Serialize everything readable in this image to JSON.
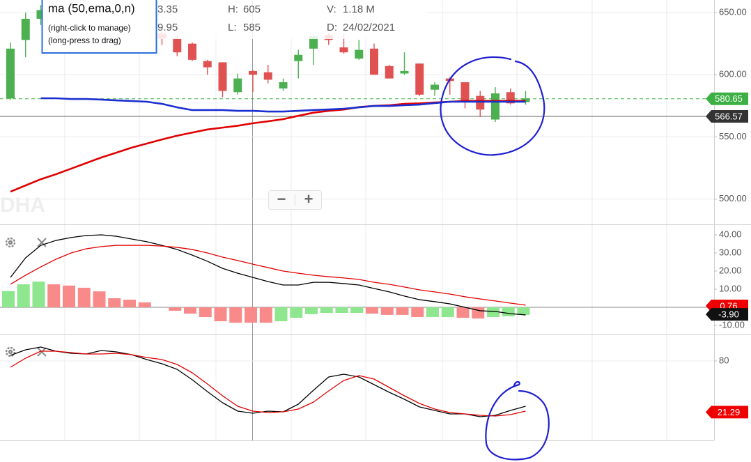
{
  "chart_data": [
    {
      "type": "candlestick",
      "watermark": "DHA",
      "zoom_buttons": [
        "−",
        "+"
      ],
      "info_clipped": [
        "3.35",
        "9.95"
      ],
      "info": [
        {
          "label": "H:",
          "value": "605"
        },
        {
          "label": "L:",
          "value": "585"
        },
        {
          "label": "V:",
          "value": "1.18 M"
        },
        {
          "label": "D:",
          "value": "24/02/2021"
        }
      ],
      "indicator_box": {
        "title": "ma (50,ema,0,n)",
        "lines": [
          "(right-click to manage)",
          "(long-press to drag)"
        ]
      },
      "up_color": "#4caf50",
      "down_color": "#e05252",
      "open": [
        581,
        628,
        645,
        null,
        null,
        null,
        null,
        null,
        null,
        null,
        633,
        629,
        625,
        611,
        610,
        586,
        603,
        602,
        589,
        611,
        621,
        632,
        622,
        613,
        621,
        607,
        601,
        609,
        588,
        597,
        594,
        583,
        564,
        586,
        578
      ],
      "high": [
        626,
        650,
        656,
        null,
        null,
        null,
        null,
        null,
        null,
        null,
        637,
        632,
        626,
        612,
        610,
        601,
        604,
        608,
        597,
        620,
        633,
        633,
        633,
        628,
        625,
        608,
        618,
        609,
        594,
        598,
        594,
        587,
        590,
        589,
        587
      ],
      "low": [
        580,
        614,
        640,
        null,
        null,
        null,
        null,
        null,
        null,
        null,
        624,
        615,
        611,
        600,
        582,
        584,
        586,
        593,
        587,
        597,
        608,
        624,
        617,
        612,
        600,
        597,
        600,
        583,
        583,
        584,
        573,
        566,
        562,
        576,
        576
      ],
      "close": [
        621,
        645,
        652,
        null,
        null,
        null,
        null,
        null,
        null,
        null,
        629,
        618,
        612,
        606,
        587,
        597,
        600,
        596,
        594,
        616,
        631,
        628,
        618,
        620,
        600,
        597,
        603,
        584,
        592,
        595,
        579,
        572,
        585,
        577,
        581
      ],
      "series": [
        {
          "color": "#e00000",
          "values": [
            506,
            511,
            516,
            520,
            524.5,
            529,
            533.5,
            537.4,
            541.4,
            544.7,
            548,
            551,
            553.5,
            556,
            557.5,
            559,
            561,
            562.6,
            564.3,
            567,
            569.5,
            571,
            572,
            574,
            575,
            575.5,
            576.6,
            577,
            577.7,
            578.3,
            579,
            579,
            579,
            579,
            579
          ]
        },
        {
          "color": "#1a2fd0",
          "values": [
            null,
            null,
            581.1,
            581.1,
            580.5,
            580.5,
            580,
            579.4,
            578.9,
            578.3,
            576.6,
            573.8,
            571.6,
            571.6,
            571.6,
            571,
            571,
            570.4,
            570.4,
            571,
            571.6,
            572.1,
            572.7,
            573.8,
            574.9,
            574.9,
            575.5,
            576,
            577.2,
            578.3,
            578.3,
            578.3,
            578.3,
            578.3,
            578.3
          ]
        }
      ],
      "ylim": [
        479.7,
        660.1
      ],
      "yticks": [
        {
          "value": 650,
          "label": "650.00"
        },
        {
          "value": 600,
          "label": "600.00"
        },
        {
          "value": 550,
          "label": "550.00"
        },
        {
          "value": 500,
          "label": "500.00"
        }
      ],
      "grid": true,
      "markers": [
        {
          "value": 580.65,
          "color": "#3cb044",
          "line": "dashed"
        },
        {
          "value": 566.57,
          "color": "#333333",
          "line": "solid"
        }
      ]
    },
    {
      "type": "macd",
      "histogram": [
        9,
        12.7,
        14.2,
        12.7,
        12,
        10.8,
        8.8,
        5,
        4.2,
        2.7,
        0,
        -1.9,
        -3.5,
        -5.4,
        -7.7,
        -8.5,
        -8.5,
        -8.5,
        -7.7,
        -5.8,
        -3.8,
        -3.1,
        -3.1,
        -3.1,
        -3.5,
        -4.2,
        -4.2,
        -5.4,
        -5.4,
        -5.4,
        -5.8,
        -6.2,
        -5.4,
        -5,
        -4.2
      ],
      "histogram_colors": [
        "#8ee68e",
        "#8ee68e",
        "#8ee68e",
        "#f88a8a",
        "#f88a8a",
        "#f88a8a",
        "#f88a8a",
        "#f88a8a",
        "#f88a8a",
        "#f88a8a",
        "#f88a8a",
        "#f88a8a",
        "#f88a8a",
        "#f88a8a",
        "#f88a8a",
        "#f88a8a",
        "#f88a8a",
        "#f88a8a",
        "#8ee68e",
        "#8ee68e",
        "#8ee68e",
        "#8ee68e",
        "#8ee68e",
        "#8ee68e",
        "#f88a8a",
        "#f88a8a",
        "#f88a8a",
        "#f88a8a",
        "#8ee68e",
        "#8ee68e",
        "#f88a8a",
        "#f88a8a",
        "#8ee68e",
        "#8ee68e",
        "#8ee68e"
      ],
      "series": [
        {
          "color": "#000000",
          "values": [
            16.5,
            27.3,
            34.2,
            36.9,
            38.5,
            39.6,
            40,
            39.2,
            37.7,
            36.2,
            34.2,
            31.9,
            28.8,
            25.4,
            21.5,
            18.8,
            16.5,
            14.2,
            12.3,
            12.3,
            13.8,
            13.8,
            13.1,
            12.3,
            10.4,
            8.5,
            6.2,
            4.2,
            3.1,
            1.9,
            0,
            -1.9,
            -2.3,
            -3.5,
            -4.2
          ]
        },
        {
          "color": "#e00000",
          "values": [
            12.7,
            17.7,
            22.3,
            26.5,
            30,
            32.3,
            33.5,
            34.2,
            34.2,
            34.2,
            33.8,
            33.1,
            31.9,
            30,
            27.7,
            25.8,
            23.8,
            21.9,
            20,
            18.8,
            17.7,
            16.9,
            16.2,
            15.4,
            13.8,
            12.7,
            11.2,
            9.6,
            8.5,
            7.3,
            5.8,
            4.6,
            3.5,
            2.3,
            1.2
          ]
        }
      ],
      "ylim": [
        -15,
        45
      ],
      "yticks": [
        {
          "value": 40,
          "label": "40.00"
        },
        {
          "value": 30,
          "label": "30.00"
        },
        {
          "value": 20,
          "label": "20.00"
        },
        {
          "value": 10,
          "label": "10.00"
        },
        {
          "value": -10,
          "label": "-10.00"
        }
      ],
      "zero_line": true,
      "markers": [
        {
          "value": 0.76,
          "color": "#ee0000"
        },
        {
          "value": -3.9,
          "label": "-3.90",
          "color": "#111111"
        }
      ]
    },
    {
      "type": "oscillator",
      "series": [
        {
          "color": "#000000",
          "values": [
            86.4,
            92.8,
            96,
            91.2,
            88.8,
            88,
            92,
            90.4,
            87.2,
            81.6,
            76.8,
            70.4,
            58.4,
            44.8,
            32,
            22.4,
            20,
            22.4,
            21.6,
            30.4,
            46.4,
            61.6,
            64.8,
            61.6,
            52.8,
            44,
            36,
            27.2,
            23.2,
            19.2,
            19.2,
            16,
            17.6,
            23.2,
            28
          ]
        },
        {
          "color": "#e00000",
          "values": [
            72.8,
            83.2,
            91.2,
            91.2,
            89.6,
            88,
            88,
            88.8,
            87.2,
            84,
            81.6,
            76,
            66.4,
            53.6,
            40,
            28,
            22.4,
            20.8,
            21.6,
            24.8,
            32.8,
            45.6,
            57.6,
            63.2,
            59.2,
            49.6,
            40,
            31.2,
            24.8,
            20.8,
            19.2,
            17.6,
            16.8,
            18.4,
            22.4
          ]
        }
      ],
      "ylim": [
        -11.2,
        108.8
      ],
      "yticks": [
        80
      ],
      "grid": true,
      "markers": [
        {
          "value": 21.29,
          "color": "#ee0000"
        }
      ]
    }
  ]
}
